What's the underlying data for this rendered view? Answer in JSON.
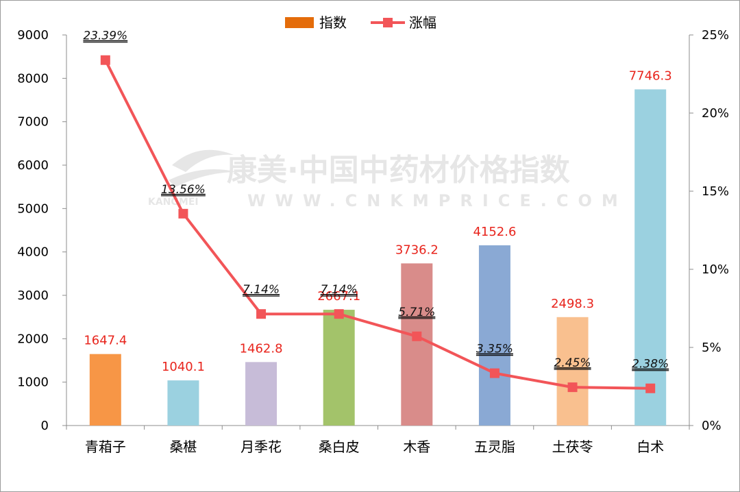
{
  "chart_data": {
    "type": "bar",
    "categories": [
      "青葙子",
      "桑椹",
      "月季花",
      "桑白皮",
      "木香",
      "五灵脂",
      "土茯苓",
      "白术"
    ],
    "series": [
      {
        "name": "指数",
        "type": "bar",
        "axis": "left",
        "values": [
          1647.4,
          1040.1,
          1462.8,
          2667.1,
          3736.2,
          4152.6,
          2498.3,
          7746.3
        ],
        "value_labels": [
          "1647.4",
          "1040.1",
          "1462.8",
          "2667.1",
          "3736.2",
          "4152.6",
          "2498.3",
          "7746.3"
        ],
        "colors": [
          "#f79646",
          "#9bd1e0",
          "#c7bcd8",
          "#a3c36a",
          "#d98c8a",
          "#8aa9d4",
          "#f9c08f",
          "#9bd1e0"
        ],
        "legend_color": "#e46c0a"
      },
      {
        "name": "涨幅",
        "type": "line",
        "axis": "right",
        "values": [
          23.39,
          13.56,
          7.14,
          7.14,
          5.71,
          3.35,
          2.45,
          2.38
        ],
        "value_labels": [
          "23.39%",
          "13.56%",
          "7.14%",
          "7.14%",
          "5.71%",
          "3.35%",
          "2.45%",
          "2.38%"
        ],
        "color": "#f25558"
      }
    ],
    "y_left": {
      "ylim": [
        0,
        9000
      ],
      "ticks": [
        "0",
        "1000",
        "2000",
        "3000",
        "4000",
        "5000",
        "6000",
        "7000",
        "8000",
        "9000"
      ]
    },
    "y_right": {
      "ylim": [
        0,
        25
      ],
      "ticks": [
        "0%",
        "5%",
        "10%",
        "15%",
        "20%",
        "25%"
      ]
    },
    "title": "",
    "xlabel": "",
    "ylabel": "",
    "grid": false,
    "legend_position": "top-center",
    "value_label_color": "#e8241c"
  },
  "watermark": {
    "line1": "康美·中国中药材价格指数",
    "line2": "WWW.CNKMPRICE.COM",
    "brand": "KANGMEI"
  }
}
